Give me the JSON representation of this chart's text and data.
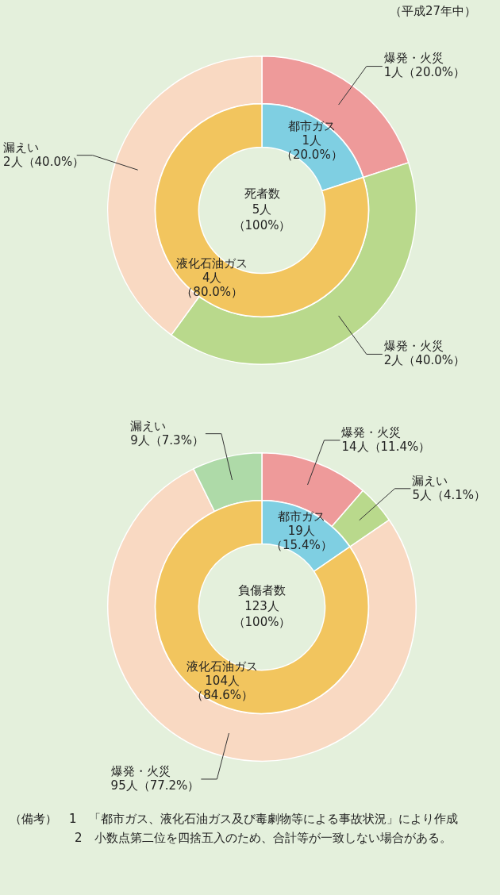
{
  "chart_data": [
    {
      "type": "donut",
      "subtitle": "（平成27年中）",
      "categories": [
        "爆発・火災",
        "爆発・火災",
        "漏えい"
      ],
      "values": [
        1,
        2,
        2
      ],
      "value_labels": [
        "1人（20.0%）",
        "2人（40.0%）",
        "2人（40.0%）"
      ],
      "colors": [
        "#ee9a9a",
        "#b9d98c",
        "#f9d9c2"
      ]
    },
    {
      "type": "donut",
      "title": "死者数",
      "subtitle": "5人（100%）",
      "categories": [
        "都市ガス",
        "液化石油ガス"
      ],
      "values": [
        1,
        4
      ],
      "value_labels": [
        "1人（20.0%）",
        "4人（80.0%）"
      ],
      "colors": [
        "#7fcfe2",
        "#f2c55e"
      ]
    },
    {
      "type": "donut",
      "annotations": [
        "（備考）　1　「都市ガス、液化石油ガス及び毒劇物等による事故状況」により作成",
        "2　小数点第二位を四捨五入のため、合計等が一致しない場合がある。"
      ],
      "categories": [
        "爆発・火災",
        "漏えい",
        "爆発・火災",
        "漏えい"
      ],
      "values": [
        14,
        5,
        95,
        9
      ],
      "value_labels": [
        "14人（11.4%）",
        "5人（4.1%）",
        "95人（77.2%）",
        "9人（7.3%）"
      ],
      "colors": [
        "#ee9a9a",
        "#b9d98c",
        "#f9d9c2",
        "#aedaa8"
      ]
    },
    {
      "type": "donut",
      "title": "負傷者数",
      "subtitle": "123人（100%）",
      "categories": [
        "都市ガス",
        "液化石油ガス"
      ],
      "values": [
        19,
        104
      ],
      "value_labels": [
        "19人（15.4%）",
        "104人（84.6%）"
      ],
      "colors": [
        "#7fcfe2",
        "#f2c55e"
      ]
    }
  ]
}
